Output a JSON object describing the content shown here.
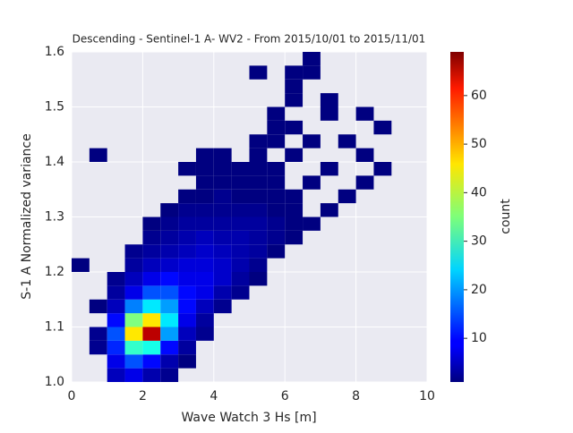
{
  "chart_data": {
    "type": "hist2d",
    "title": "Descending - Sentinel-1 A- WV2 - From 2015/10/01 to 2015/11/01",
    "xlabel": "Wave Watch 3 Hs [m]",
    "ylabel": "S-1 A Normalized variance",
    "colorbar_label": "count",
    "colormap": "jet",
    "xlim": [
      0,
      10
    ],
    "xticks": [
      0,
      2,
      4,
      6,
      8,
      10
    ],
    "ylim": [
      1.0,
      1.6
    ],
    "yticks": [
      {
        "value": 1.0,
        "label": "1.0"
      },
      {
        "value": 1.1,
        "label": "1.1"
      },
      {
        "value": 1.2,
        "label": "1.2"
      },
      {
        "value": 1.3,
        "label": "1.3"
      },
      {
        "value": 1.4,
        "label": "1.4"
      },
      {
        "value": 1.5,
        "label": "1.5"
      },
      {
        "value": 1.6,
        "label": "1.6"
      }
    ],
    "clim": [
      1,
      69
    ],
    "cticks": [
      10,
      20,
      30,
      40,
      50,
      60
    ],
    "grid": true,
    "x_bins": [
      0,
      0.5,
      1,
      1.5,
      2,
      2.5,
      3,
      3.5,
      4,
      4.5,
      5,
      5.5,
      6,
      6.5,
      7,
      7.5,
      8,
      8.5,
      9,
      9.5,
      10
    ],
    "y_bins": [
      1.0,
      1.025,
      1.05,
      1.075,
      1.1,
      1.125,
      1.15,
      1.175,
      1.2,
      1.225,
      1.25,
      1.275,
      1.3,
      1.325,
      1.35,
      1.375,
      1.4,
      1.425,
      1.45,
      1.475,
      1.5,
      1.525,
      1.55,
      1.575,
      1.6
    ],
    "counts": [
      [
        null,
        null,
        5,
        8,
        4,
        2,
        null,
        null,
        null,
        null,
        null,
        null,
        null,
        null,
        null,
        null,
        null,
        null,
        null,
        null
      ],
      [
        null,
        null,
        8,
        15,
        10,
        4,
        1,
        null,
        null,
        null,
        null,
        null,
        null,
        null,
        null,
        null,
        null,
        null,
        null,
        null
      ],
      [
        null,
        2,
        12,
        30,
        28,
        10,
        3,
        null,
        null,
        null,
        null,
        null,
        null,
        null,
        null,
        null,
        null,
        null,
        null,
        null
      ],
      [
        null,
        2,
        15,
        45,
        65,
        20,
        5,
        2,
        null,
        null,
        null,
        null,
        null,
        null,
        null,
        null,
        null,
        null,
        null,
        null
      ],
      [
        null,
        null,
        10,
        35,
        45,
        25,
        8,
        3,
        null,
        null,
        null,
        null,
        null,
        null,
        null,
        null,
        null,
        null,
        null,
        null
      ],
      [
        null,
        1,
        5,
        18,
        25,
        20,
        10,
        5,
        2,
        null,
        null,
        null,
        null,
        null,
        null,
        null,
        null,
        null,
        null,
        null
      ],
      [
        null,
        null,
        3,
        8,
        15,
        15,
        10,
        8,
        4,
        2,
        null,
        null,
        null,
        null,
        null,
        null,
        null,
        null,
        null,
        null
      ],
      [
        null,
        null,
        2,
        5,
        8,
        10,
        8,
        8,
        6,
        3,
        1,
        null,
        null,
        null,
        null,
        null,
        null,
        null,
        null,
        null
      ],
      [
        1,
        null,
        null,
        3,
        5,
        6,
        7,
        7,
        6,
        4,
        2,
        null,
        null,
        null,
        null,
        null,
        null,
        null,
        null,
        null
      ],
      [
        null,
        null,
        null,
        2,
        3,
        4,
        5,
        6,
        5,
        4,
        3,
        1,
        null,
        null,
        null,
        null,
        null,
        null,
        null,
        null
      ],
      [
        null,
        null,
        null,
        null,
        2,
        3,
        4,
        5,
        4,
        4,
        3,
        2,
        1,
        null,
        null,
        null,
        null,
        null,
        null,
        null
      ],
      [
        null,
        null,
        null,
        null,
        1,
        2,
        3,
        3,
        3,
        3,
        3,
        2,
        1,
        1,
        null,
        null,
        null,
        null,
        null,
        null
      ],
      [
        null,
        null,
        null,
        null,
        null,
        1,
        2,
        2,
        2,
        2,
        2,
        1,
        1,
        null,
        1,
        null,
        null,
        null,
        null,
        null
      ],
      [
        null,
        null,
        null,
        null,
        null,
        null,
        1,
        1,
        2,
        1,
        1,
        1,
        1,
        null,
        null,
        1,
        null,
        null,
        null,
        null
      ],
      [
        null,
        null,
        null,
        null,
        null,
        null,
        null,
        1,
        1,
        1,
        1,
        1,
        null,
        1,
        null,
        null,
        1,
        null,
        null,
        null
      ],
      [
        null,
        null,
        null,
        null,
        null,
        null,
        1,
        1,
        1,
        1,
        1,
        1,
        null,
        null,
        1,
        null,
        null,
        1,
        null,
        null
      ],
      [
        null,
        1,
        null,
        null,
        null,
        null,
        null,
        1,
        1,
        null,
        1,
        null,
        1,
        null,
        null,
        null,
        1,
        null,
        null,
        null
      ],
      [
        null,
        null,
        null,
        null,
        null,
        null,
        null,
        null,
        null,
        null,
        1,
        1,
        null,
        1,
        null,
        1,
        null,
        null,
        null,
        null
      ],
      [
        null,
        null,
        null,
        null,
        null,
        null,
        null,
        null,
        null,
        null,
        null,
        1,
        1,
        null,
        null,
        null,
        null,
        1,
        null,
        null
      ],
      [
        null,
        null,
        null,
        null,
        null,
        null,
        null,
        null,
        null,
        null,
        null,
        1,
        null,
        null,
        1,
        null,
        1,
        null,
        null,
        null
      ],
      [
        null,
        null,
        null,
        null,
        null,
        null,
        null,
        null,
        null,
        null,
        null,
        null,
        1,
        null,
        1,
        null,
        null,
        null,
        null,
        null
      ],
      [
        null,
        null,
        null,
        null,
        null,
        null,
        null,
        null,
        null,
        null,
        null,
        null,
        1,
        null,
        null,
        null,
        null,
        null,
        null,
        null
      ],
      [
        null,
        null,
        null,
        null,
        null,
        null,
        null,
        null,
        null,
        null,
        1,
        null,
        1,
        1,
        null,
        null,
        null,
        null,
        null,
        null
      ],
      [
        null,
        null,
        null,
        null,
        null,
        null,
        null,
        null,
        null,
        null,
        null,
        null,
        null,
        1,
        null,
        null,
        null,
        null,
        null,
        null
      ]
    ]
  }
}
